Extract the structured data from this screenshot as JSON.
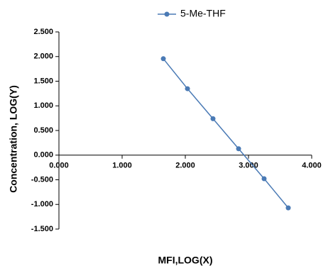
{
  "chart_data": {
    "type": "line",
    "x_label": "MFI,LOG(X)",
    "y_label": "Concentration,  LOG(Y)",
    "x": [
      1.652,
      2.034,
      2.438,
      2.843,
      3.247,
      3.629
    ],
    "series": [
      {
        "name": "5-Me-THF",
        "color": "#4a7ab5",
        "values": [
          1.956,
          1.348,
          0.739,
          0.13,
          -0.478,
          -1.07
        ]
      }
    ],
    "xlim": [
      0,
      4
    ],
    "xticks": [
      {
        "value": 0,
        "label": "0.000"
      },
      {
        "value": 1,
        "label": "1.000"
      },
      {
        "value": 2,
        "label": "2.000"
      },
      {
        "value": 3,
        "label": "3.000"
      },
      {
        "value": 4,
        "label": "4.000"
      }
    ],
    "ylim": [
      -1.5,
      2.5
    ],
    "yticks": [
      {
        "value": 2.5,
        "label": "2.500"
      },
      {
        "value": 2,
        "label": "2.000"
      },
      {
        "value": 1.5,
        "label": "1.500"
      },
      {
        "value": 1,
        "label": "1.000"
      },
      {
        "value": 0.5,
        "label": "0.500"
      },
      {
        "value": 0,
        "label": "0.000"
      },
      {
        "value": -0.5,
        "label": "-0.500"
      },
      {
        "value": -1,
        "label": "-1.000"
      },
      {
        "value": -1.5,
        "label": "-1.500"
      }
    ],
    "legend": "top"
  }
}
